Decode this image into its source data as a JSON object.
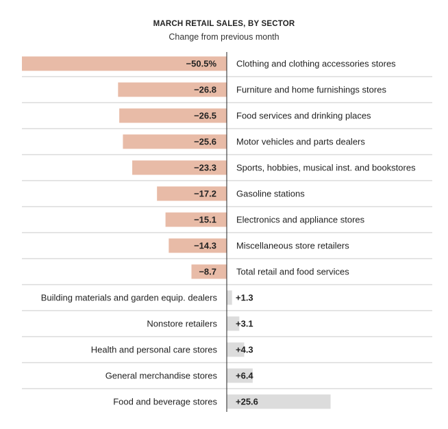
{
  "chart_data": {
    "type": "bar",
    "orientation": "horizontal",
    "title": "MARCH RETAIL SALES, BY SECTOR",
    "subtitle": "Change from previous month",
    "unit_suffix_first": "%",
    "colors": {
      "negative": "#e8bba7",
      "positive": "#dcdcdc",
      "axis": "#222222",
      "grid": "#c8c8c8"
    },
    "xlim": [
      -50.5,
      25.6
    ],
    "categories": [
      "Clothing and clothing accessories stores",
      "Furniture and home furnishings stores",
      "Food services and drinking places",
      "Motor vehicles and parts dealers",
      "Sports, hobbies, musical inst. and bookstores",
      "Gasoline stations",
      "Electronics and appliance stores",
      "Miscellaneous store retailers",
      "Total retail and food services",
      "Building materials and garden equip. dealers",
      "Nonstore retailers",
      "Health and personal care stores",
      "General merchandise stores",
      "Food and beverage stores"
    ],
    "values": [
      -50.5,
      -26.8,
      -26.5,
      -25.6,
      -23.3,
      -17.2,
      -15.1,
      -14.3,
      -8.7,
      1.3,
      3.1,
      4.3,
      6.4,
      25.6
    ],
    "value_labels": [
      "−50.5%",
      "−26.8",
      "−26.5",
      "−25.6",
      "−23.3",
      "−17.2",
      "−15.1",
      "−14.3",
      "−8.7",
      "+1.3",
      "+3.1",
      "+4.3",
      "+6.4",
      "+25.6"
    ]
  }
}
